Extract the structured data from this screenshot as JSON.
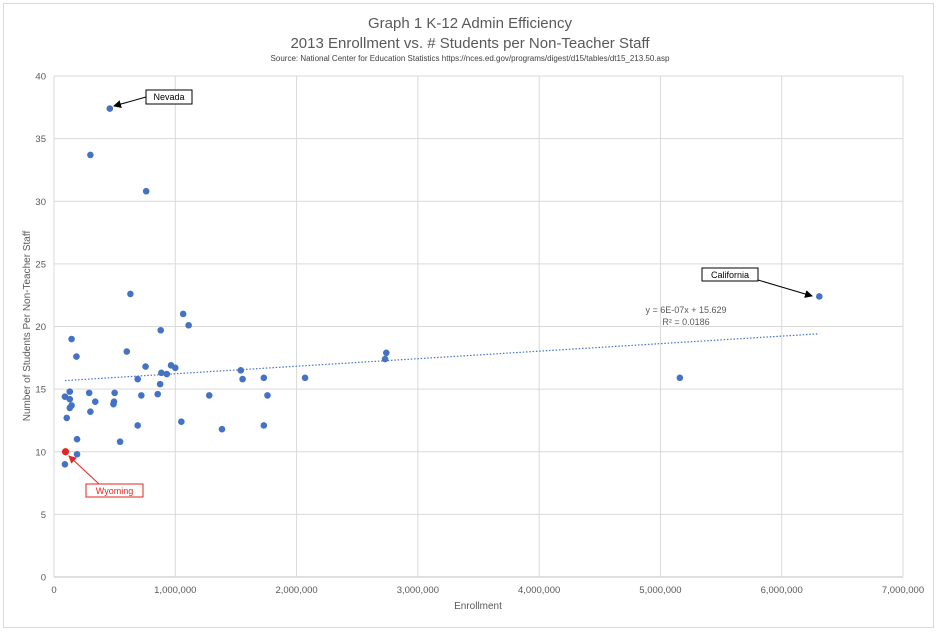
{
  "chart_data": {
    "type": "scatter",
    "title_line1": "Graph 1 K-12 Admin Efficiency",
    "title_line2": "2013 Enrollment vs. # Students per Non-Teacher Staff",
    "source": "Source: National Center for Education Statistics https://nces.ed.gov/programs/digest/d15/tables/dt15_213.50.asp",
    "xlabel": "Enrollment",
    "ylabel": "Number of Students Per Non-Teacher Staff",
    "xlim": [
      0,
      7000000
    ],
    "ylim": [
      0,
      40
    ],
    "x_ticks": [
      "0",
      "1,000,000",
      "2,000,000",
      "3,000,000",
      "4,000,000",
      "5,000,000",
      "6,000,000",
      "7,000,000"
    ],
    "y_ticks": [
      "0",
      "5",
      "10",
      "15",
      "20",
      "25",
      "30",
      "35",
      "40"
    ],
    "grid": true,
    "point_color": "#4472c4",
    "highlight_color": "#e3261f",
    "points": [
      {
        "x": 90000,
        "y": 14.4
      },
      {
        "x": 90000,
        "y": 9.0
      },
      {
        "x": 105000,
        "y": 12.7
      },
      {
        "x": 130000,
        "y": 14.2
      },
      {
        "x": 130000,
        "y": 14.8
      },
      {
        "x": 130000,
        "y": 13.5
      },
      {
        "x": 145000,
        "y": 13.7
      },
      {
        "x": 145000,
        "y": 19.0
      },
      {
        "x": 185000,
        "y": 17.6
      },
      {
        "x": 190000,
        "y": 11.0
      },
      {
        "x": 190000,
        "y": 9.8
      },
      {
        "x": 290000,
        "y": 14.7
      },
      {
        "x": 300000,
        "y": 13.2
      },
      {
        "x": 300000,
        "y": 33.7
      },
      {
        "x": 340000,
        "y": 14.0
      },
      {
        "x": 460000,
        "y": 37.4
      },
      {
        "x": 490000,
        "y": 13.8
      },
      {
        "x": 495000,
        "y": 14.0
      },
      {
        "x": 500000,
        "y": 14.7
      },
      {
        "x": 545000,
        "y": 10.8
      },
      {
        "x": 600000,
        "y": 18.0
      },
      {
        "x": 630000,
        "y": 22.6
      },
      {
        "x": 690000,
        "y": 15.8
      },
      {
        "x": 690000,
        "y": 12.1
      },
      {
        "x": 720000,
        "y": 14.5
      },
      {
        "x": 755000,
        "y": 16.8
      },
      {
        "x": 760000,
        "y": 30.8
      },
      {
        "x": 855000,
        "y": 14.6
      },
      {
        "x": 875000,
        "y": 15.4
      },
      {
        "x": 880000,
        "y": 19.7
      },
      {
        "x": 885000,
        "y": 16.3
      },
      {
        "x": 930000,
        "y": 16.2
      },
      {
        "x": 965000,
        "y": 16.9
      },
      {
        "x": 1000000,
        "y": 16.7
      },
      {
        "x": 1050000,
        "y": 12.4
      },
      {
        "x": 1065000,
        "y": 21.0
      },
      {
        "x": 1110000,
        "y": 20.1
      },
      {
        "x": 1280000,
        "y": 14.5
      },
      {
        "x": 1385000,
        "y": 11.8
      },
      {
        "x": 1540000,
        "y": 16.5
      },
      {
        "x": 1555000,
        "y": 15.8
      },
      {
        "x": 1730000,
        "y": 15.9
      },
      {
        "x": 1730000,
        "y": 12.1
      },
      {
        "x": 1760000,
        "y": 14.5
      },
      {
        "x": 2070000,
        "y": 15.9
      },
      {
        "x": 2730000,
        "y": 17.4
      },
      {
        "x": 2740000,
        "y": 17.9
      },
      {
        "x": 5160000,
        "y": 15.9
      },
      {
        "x": 6310000,
        "y": 22.4
      }
    ],
    "highlight_points": [
      {
        "x": 95000,
        "y": 10.0
      }
    ],
    "trendline": {
      "x": [
        90000,
        6310000
      ],
      "y": [
        15.68,
        19.42
      ],
      "color": "#4472c4"
    },
    "trend_equation": "y = 6E-07x + 15.629",
    "trend_r2": "R² = 0.0186",
    "callouts": [
      {
        "label": "Nevada",
        "color": "#000000",
        "x": 460000,
        "y": 37.4
      },
      {
        "label": "California",
        "color": "#000000",
        "x": 6310000,
        "y": 22.4
      },
      {
        "label": "Wyoming",
        "color": "#e3261f",
        "x": 95000,
        "y": 10.0
      }
    ]
  }
}
